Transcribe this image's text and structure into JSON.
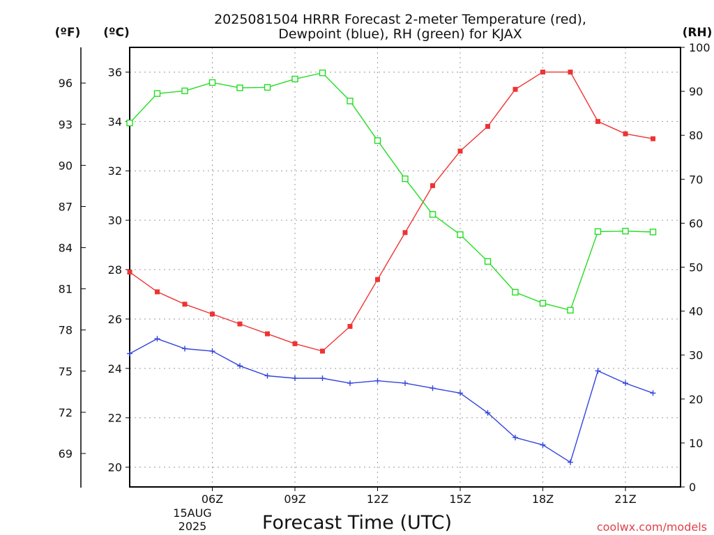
{
  "chart_data": {
    "type": "line",
    "title_line1": "2025081504 HRRR Forecast 2-meter Temperature (red),",
    "title_line2": "Dewpoint (blue), RH (green) for KJAX",
    "xlabel": "Forecast Time (UTC)",
    "watermark": "coolwx.com/models",
    "unit_labels": {
      "fahrenheit": "(ºF)",
      "celsius": "(ºC)",
      "rh": "(RH)"
    },
    "x_range": [
      3,
      23
    ],
    "x_ticks": [
      {
        "x": 6,
        "label": "06Z"
      },
      {
        "x": 9,
        "label": "09Z"
      },
      {
        "x": 12,
        "label": "12Z"
      },
      {
        "x": 15,
        "label": "15Z"
      },
      {
        "x": 18,
        "label": "18Z"
      },
      {
        "x": 21,
        "label": "21Z"
      }
    ],
    "date_line1": "15AUG",
    "date_line2": "2025",
    "celsius_axis": {
      "range": [
        19.2,
        37
      ],
      "ticks": [
        20,
        22,
        24,
        26,
        28,
        30,
        32,
        34,
        36
      ]
    },
    "fahrenheit_axis": {
      "ticks": [
        69,
        72,
        75,
        78,
        81,
        84,
        87,
        90,
        93,
        96
      ]
    },
    "rh_axis": {
      "range": [
        0,
        100
      ],
      "ticks": [
        0,
        10,
        20,
        30,
        40,
        50,
        60,
        70,
        80,
        90,
        100
      ]
    },
    "grid": true,
    "x": [
      3,
      4,
      5,
      6,
      7,
      8,
      9,
      10,
      11,
      12,
      13,
      14,
      15,
      16,
      17,
      18,
      19,
      20,
      21,
      22
    ],
    "series": [
      {
        "name": "Temperature",
        "axis": "celsius",
        "color": "#ee3333",
        "marker": "filled-square",
        "values": [
          27.9,
          27.1,
          26.6,
          26.2,
          25.8,
          25.4,
          25.0,
          24.7,
          25.7,
          27.6,
          29.5,
          31.4,
          32.8,
          33.8,
          35.3,
          36.0,
          36.0,
          34.0,
          33.5,
          33.3
        ]
      },
      {
        "name": "Dewpoint",
        "axis": "celsius",
        "color": "#3344dd",
        "marker": "plus",
        "values": [
          24.6,
          25.2,
          24.8,
          24.7,
          24.1,
          23.7,
          23.6,
          23.6,
          23.4,
          23.5,
          23.4,
          23.2,
          23.0,
          22.2,
          21.2,
          20.9,
          20.2,
          23.9,
          23.4,
          23.0
        ]
      },
      {
        "name": "RH",
        "axis": "rh",
        "color": "#22dd22",
        "marker": "open-square",
        "values": [
          82.8,
          89.5,
          90.1,
          92.0,
          90.8,
          90.9,
          92.8,
          94.2,
          87.8,
          78.8,
          70.1,
          62.0,
          57.4,
          51.3,
          44.3,
          41.8,
          40.2,
          58.1,
          58.2,
          58.0
        ]
      }
    ]
  }
}
